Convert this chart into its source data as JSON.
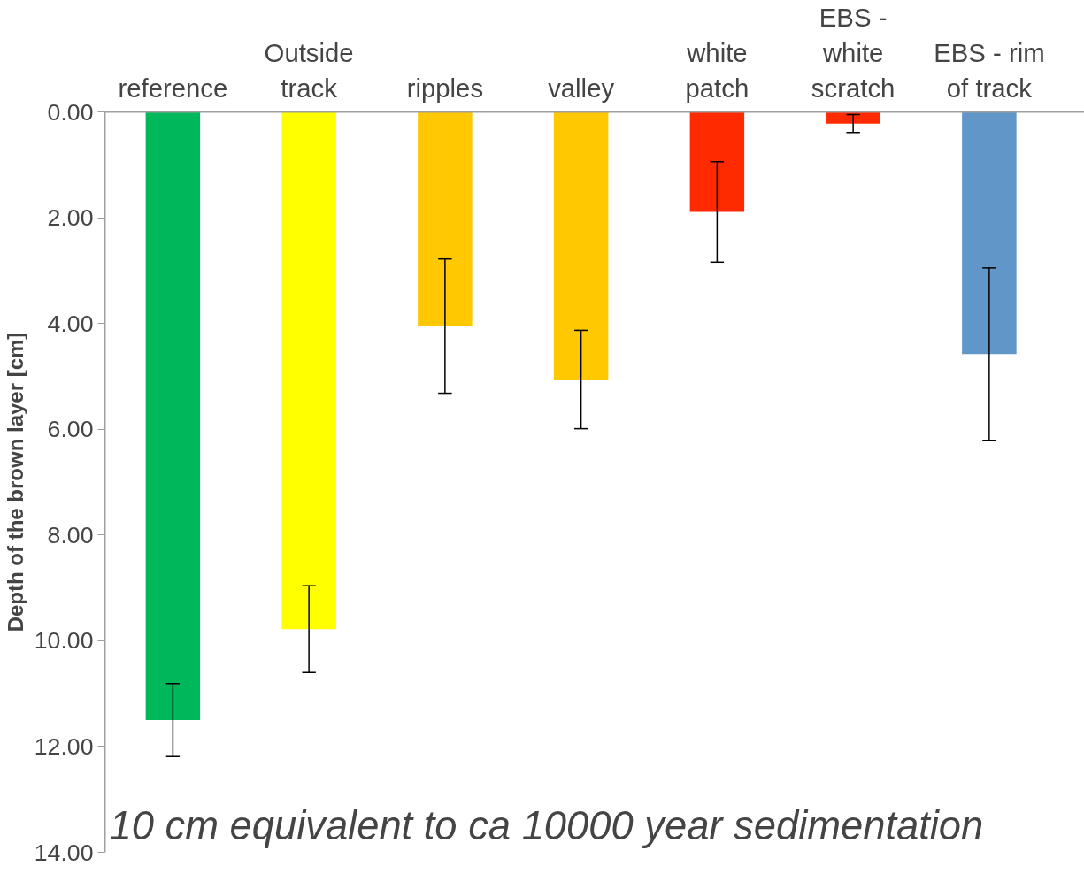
{
  "chart_data": {
    "type": "bar",
    "ylabel": "Depth of the brown layer [cm]",
    "categories": [
      "reference",
      "Outside track",
      "ripples",
      "valley",
      "white patch",
      "EBS - white scratch",
      "EBS - rim of track"
    ],
    "values": [
      11.5,
      9.78,
      4.05,
      5.06,
      1.89,
      0.22,
      4.58
    ],
    "errors": [
      0.69,
      0.82,
      1.27,
      0.93,
      0.95,
      0.17,
      1.63
    ],
    "colors": [
      "#00b85c",
      "#ffff00",
      "#ffc800",
      "#ffc800",
      "#ff2a00",
      "#ff2a00",
      "#6096c8"
    ],
    "ylim": [
      14,
      0
    ],
    "yticks": [
      {
        "value": 0,
        "label": "0.00"
      },
      {
        "value": 2,
        "label": "2.00"
      },
      {
        "value": 4,
        "label": "4.00"
      },
      {
        "value": 6,
        "label": "6.00"
      },
      {
        "value": 8,
        "label": "8.00"
      },
      {
        "value": 10,
        "label": "10.00"
      },
      {
        "value": 12,
        "label": "12.00"
      },
      {
        "value": 14,
        "label": "14.00"
      }
    ],
    "grid": false,
    "annotations": [
      "10 cm equivalent to ca 10000 year sedimentation"
    ]
  }
}
